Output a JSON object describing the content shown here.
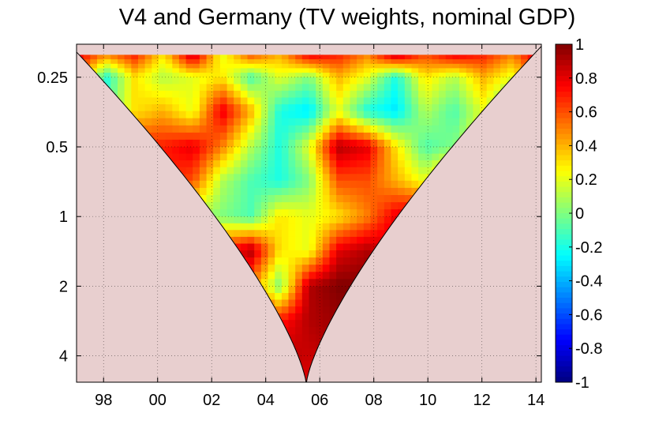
{
  "chart_data": {
    "type": "heatmap",
    "title": "V4 and Germany (TV weights, nominal GDP)",
    "xlabel": "",
    "ylabel": "",
    "x_ticks": [
      "98",
      "00",
      "02",
      "04",
      "06",
      "08",
      "10",
      "12",
      "14"
    ],
    "x_tick_years": [
      1998,
      2000,
      2002,
      2004,
      2006,
      2008,
      2010,
      2012,
      2014
    ],
    "xlim": [
      1997.0,
      2014.2
    ],
    "y_ticks": [
      "0.25",
      "0.5",
      "1",
      "2",
      "4"
    ],
    "y_tick_values": [
      0.25,
      0.5,
      1,
      2,
      4
    ],
    "ylim": [
      0.18,
      5.2
    ],
    "y_scale": "log2",
    "y_reversed": true,
    "colorbar_ticks": [
      "1",
      "0.8",
      "0.6",
      "0.4",
      "0.2",
      "0",
      "-0.2",
      "-0.4",
      "-0.6",
      "-0.8",
      "-1"
    ],
    "colorbar_values": [
      1,
      0.8,
      0.6,
      0.4,
      0.2,
      0,
      -0.2,
      -0.4,
      -0.6,
      -0.8,
      -1
    ],
    "zlim": [
      -1,
      1
    ],
    "colormap": "jet",
    "grid": true,
    "cone_of_influence": true,
    "outside_cone_color": "#e8cfcf",
    "period_bands": [
      {
        "period": 0.2,
        "values": [
          0.8,
          0.5,
          0.7,
          0.3,
          0.9,
          0.2,
          0.6,
          0.4,
          0.8,
          0.7,
          0.5,
          0.9,
          0.6,
          0.8,
          0.7,
          0.5,
          0.9
        ]
      },
      {
        "period": 0.25,
        "values": [
          0.6,
          -0.2,
          0.3,
          0.1,
          0.2,
          0.3,
          -0.1,
          0.2,
          0.0,
          0.4,
          0.2,
          -0.2,
          0.3,
          0.1,
          0.4,
          0.2,
          0.6
        ]
      },
      {
        "period": 0.35,
        "values": [
          0.6,
          -0.1,
          0.3,
          0.4,
          0.2,
          0.8,
          0.4,
          -0.2,
          -0.3,
          0.2,
          -0.2,
          -0.3,
          0.1,
          -0.1,
          0.2,
          -0.2,
          0.3
        ]
      },
      {
        "period": 0.5,
        "values": [
          0.5,
          0.2,
          0.7,
          0.7,
          0.8,
          0.5,
          0.1,
          -0.2,
          0.2,
          0.9,
          0.8,
          0.3,
          -0.1,
          0.0,
          0.3,
          0.5,
          0.2
        ]
      },
      {
        "period": 0.7,
        "values": [
          0.4,
          0.0,
          -0.2,
          0.7,
          0.6,
          0.1,
          -0.1,
          -0.2,
          0.0,
          0.6,
          0.6,
          0.4,
          0.2,
          0.6,
          0.7,
          0.5,
          0.3
        ]
      },
      {
        "period": 1.0,
        "values": [
          0.3,
          0.3,
          0.1,
          -0.2,
          0.1,
          0.0,
          -0.1,
          0.3,
          0.2,
          0.3,
          0.5,
          0.8,
          0.9,
          0.6,
          0.5,
          0.4,
          0.2
        ]
      },
      {
        "period": 1.4,
        "values": [
          0.4,
          0.6,
          0.8,
          0.7,
          0.3,
          0.7,
          0.9,
          0.3,
          0.2,
          0.8,
          0.9,
          0.8,
          0.6,
          0.2,
          0.5,
          0.4,
          0.3
        ]
      },
      {
        "period": 2.0,
        "values": [
          0.6,
          0.9,
          0.9,
          0.2,
          0.9,
          0.6,
          0.5,
          0.0,
          0.9,
          1.0,
          1.0,
          1.0,
          0.9,
          0.9,
          0.6,
          0.6,
          0.4
        ]
      },
      {
        "period": 2.8,
        "values": [
          0.7,
          0.9,
          0.9,
          0.8,
          0.6,
          0.3,
          0.9,
          0.7,
          0.9,
          0.95,
          0.9,
          0.8,
          0.85,
          0.8,
          0.6,
          0.5,
          0.4
        ]
      },
      {
        "period": 4.0,
        "values": [
          0.8,
          0.9,
          0.9,
          0.8,
          0.9,
          1.0,
          0.95,
          0.9,
          0.85,
          0.9,
          0.85,
          0.8,
          0.75,
          0.8,
          0.7,
          0.6,
          0.5
        ]
      },
      {
        "period": 5.2,
        "values": [
          0.8,
          0.8,
          0.9,
          0.9,
          1.0,
          1.0,
          0.95,
          0.9,
          0.8,
          0.8,
          0.8,
          0.7,
          0.7,
          0.7,
          0.6,
          0.5,
          0.4
        ]
      }
    ]
  }
}
